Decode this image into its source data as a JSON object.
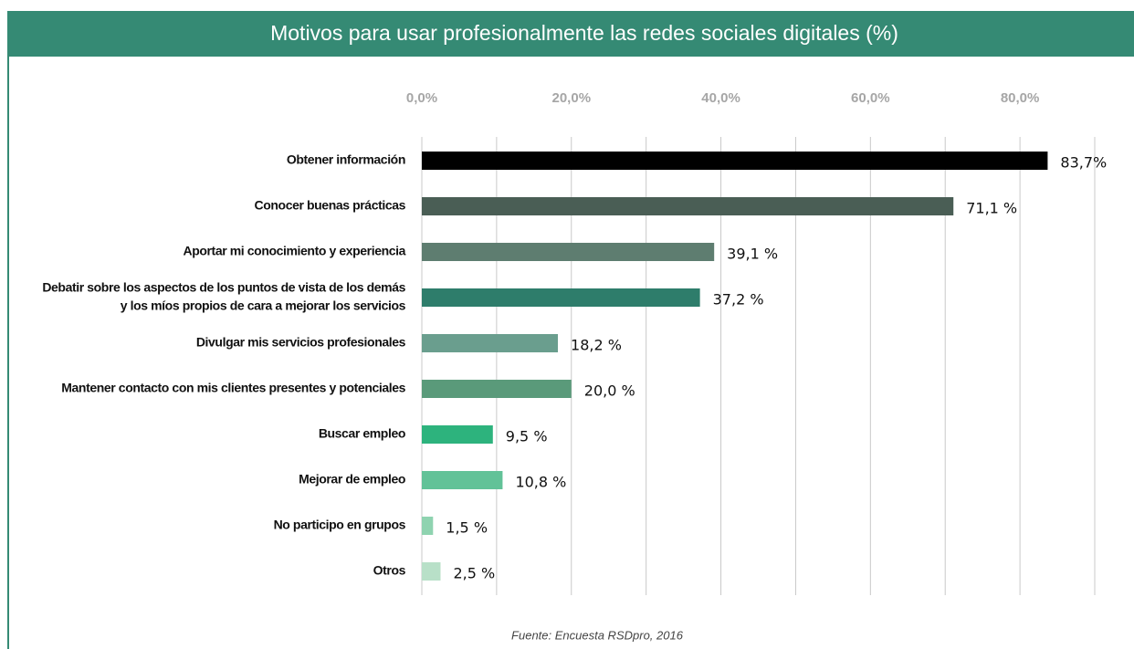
{
  "chart_data": {
    "type": "bar",
    "orientation": "horizontal",
    "title": "Motivos para usar profesionalmente las redes sociales digitales (%)",
    "source": "Fuente: Encuesta RSDpro, 2016",
    "categories": [
      "Obtener información",
      "Conocer buenas prácticas",
      "Aportar mi conocimiento y experiencia",
      [
        "Debatir sobre los aspectos de los puntos de vista de los demás",
        "y los míos propios de cara a mejorar los servicios"
      ],
      "Divulgar mis servicios profesionales",
      "Mantener contacto con mis clientes presentes y potenciales",
      "Buscar empleo",
      "Mejorar de empleo",
      "No participo en grupos",
      "Otros"
    ],
    "values": [
      83.7,
      71.1,
      39.1,
      37.2,
      18.2,
      20.0,
      9.5,
      10.8,
      1.5,
      2.5
    ],
    "value_labels": [
      "83,7%",
      "71,1 %",
      "39,1 %",
      "37,2 %",
      "18,2 %",
      "20,0 %",
      "9,5 %",
      "10,8 %",
      "1,5 %",
      "2,5 %"
    ],
    "colors": [
      "#000000",
      "#4a5e55",
      "#5e7d70",
      "#2e7d6b",
      "#6a9e8e",
      "#5a9a7a",
      "#2db37d",
      "#62c298",
      "#8fd3b0",
      "#b8e0c8"
    ],
    "xlim": [
      0,
      90
    ],
    "xticks": [
      {
        "value": 0,
        "label": "0,0%"
      },
      {
        "value": 20,
        "label": "20,0%"
      },
      {
        "value": 40,
        "label": "40,0%"
      },
      {
        "value": 60,
        "label": "60,0%"
      },
      {
        "value": 80,
        "label": "80,0%"
      }
    ],
    "xgrid": [
      0,
      10,
      20,
      30,
      40,
      50,
      60,
      70,
      80,
      90
    ],
    "grid": true
  }
}
